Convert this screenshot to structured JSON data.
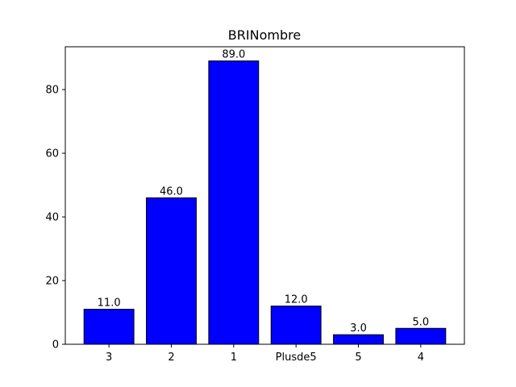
{
  "chart_data": {
    "type": "bar",
    "title": "BRINombre",
    "xlabel": "",
    "ylabel": "",
    "categories": [
      "3",
      "2",
      "1",
      "Plusde5",
      "5",
      "4"
    ],
    "values": [
      11.0,
      46.0,
      89.0,
      12.0,
      3.0,
      5.0
    ],
    "value_labels": [
      "11.0",
      "46.0",
      "89.0",
      "12.0",
      "3.0",
      "5.0"
    ],
    "ylim": [
      0,
      93.45
    ],
    "yticks": [
      0,
      20,
      40,
      60,
      80
    ],
    "ytick_labels": [
      "0",
      "20",
      "40",
      "60",
      "80"
    ],
    "grid": false,
    "bar_color": "#0000ff",
    "edge_color": "#000000"
  }
}
